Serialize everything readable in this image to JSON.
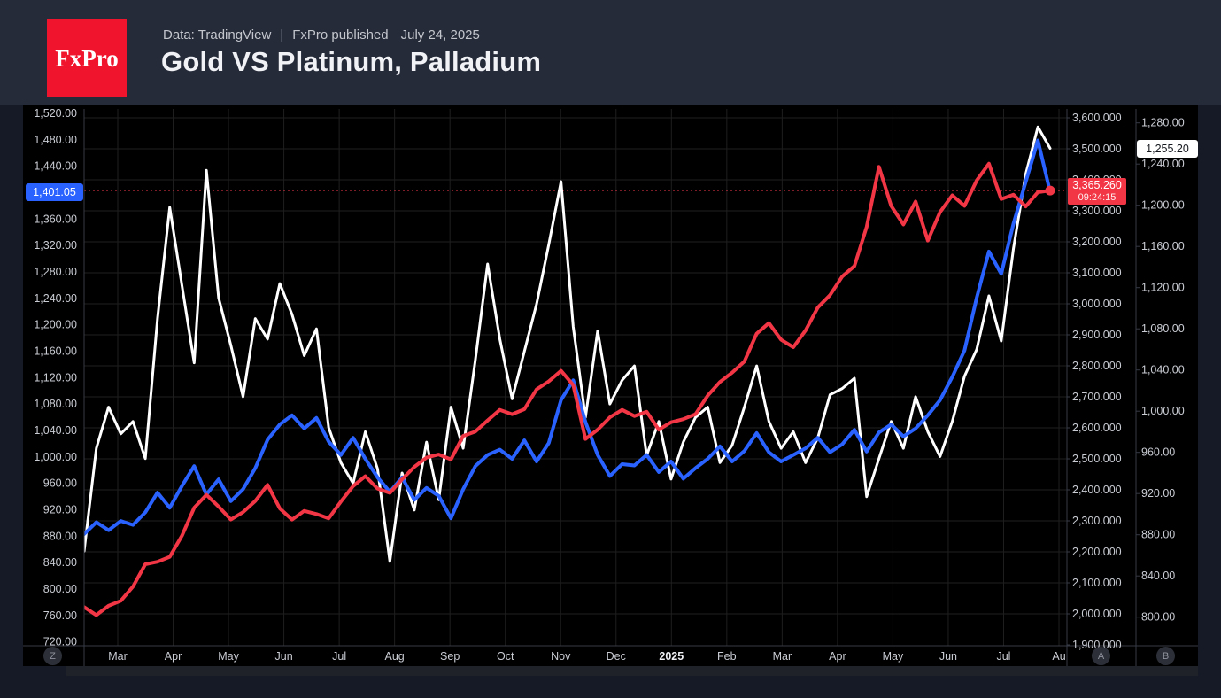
{
  "header": {
    "logo_text": "FxPro",
    "data_source": "Data: TradingView",
    "separator": "|",
    "published": "FxPro published",
    "publish_date": "July 24, 2025",
    "title": "Gold VS Platinum, Palladium"
  },
  "badges": {
    "platinum_last": "1,401.05",
    "palladium_last": "1,255.20",
    "gold_last": "3,365.260",
    "gold_time": "09:24:15"
  },
  "buttons": {
    "zoom_reset": "Z",
    "axis_a": "A",
    "axis_b": "B"
  },
  "colors": {
    "gold_line": "#f23645",
    "platinum_line": "#2962ff",
    "palladium_line": "#ffffff",
    "background": "#000000",
    "header_bg": "#262b39",
    "axis_text": "#c9ccd3",
    "logo_red": "#f0142d"
  },
  "chart_data": {
    "type": "line",
    "title": "Gold VS Platinum, Palladium",
    "sampling": "weekly, Feb 2024 - Jul 24 2025",
    "grid": true,
    "legend": "none",
    "x_axis": {
      "labels": [
        "Mar",
        "Apr",
        "May",
        "Jun",
        "Jul",
        "Aug",
        "Sep",
        "Oct",
        "Nov",
        "Dec",
        "2025",
        "Feb",
        "Mar",
        "Apr",
        "May",
        "Jun",
        "Jul",
        "Au"
      ],
      "bold_label": "2025"
    },
    "axes": {
      "left": {
        "instrument": "Platinum",
        "min": 720,
        "max": 1520,
        "step": 40,
        "decimals": 2,
        "hidden_tick": 1400
      },
      "right_inner": {
        "instrument": "Gold",
        "min": 1900,
        "max": 3600,
        "step": 100,
        "decimals": 3
      },
      "right_outer": {
        "instrument": "Palladium",
        "min": 800,
        "max": 1280,
        "step": 40,
        "decimals": 2
      }
    },
    "series": [
      {
        "name": "Palladium",
        "color": "#ffffff",
        "axis": "right_outer",
        "last_value": 1255.2,
        "values": [
          864,
          964,
          1004,
          978,
          990,
          954,
          1090,
          1198,
          1122,
          1047,
          1234,
          1110,
          1064,
          1014,
          1090,
          1070,
          1124,
          1094,
          1054,
          1080,
          984,
          950,
          930,
          980,
          944,
          854,
          940,
          904,
          970,
          914,
          1004,
          964,
          1050,
          1143,
          1070,
          1012,
          1058,
          1104,
          1162,
          1223,
          1082,
          994,
          1078,
          1007,
          1030,
          1044,
          957,
          990,
          934,
          970,
          994,
          1004,
          950,
          967,
          1004,
          1044,
          990,
          964,
          980,
          950,
          974,
          1016,
          1022,
          1032,
          917,
          954,
          990,
          964,
          1014,
          980,
          956,
          990,
          1034,
          1060,
          1112,
          1068,
          1158,
          1230,
          1276,
          1255.2
        ]
      },
      {
        "name": "Platinum",
        "color": "#2962ff",
        "axis": "left",
        "last_value": 1401.05,
        "values": [
          883,
          901,
          889,
          903,
          897,
          916,
          946,
          923,
          956,
          986,
          943,
          966,
          933,
          951,
          983,
          1026,
          1049,
          1063,
          1043,
          1059,
          1023,
          1003,
          1029,
          997,
          969,
          947,
          969,
          935,
          953,
          941,
          907,
          951,
          986,
          1003,
          1011,
          997,
          1025,
          993,
          1021,
          1086,
          1116,
          1053,
          1003,
          971,
          989,
          987,
          1003,
          977,
          993,
          967,
          983,
          997,
          1016,
          993,
          1009,
          1036,
          1007,
          993,
          1003,
          1013,
          1029,
          1007,
          1019,
          1041,
          1008,
          1037,
          1049,
          1031,
          1043,
          1063,
          1086,
          1121,
          1161,
          1241,
          1311,
          1277,
          1353,
          1416,
          1479,
          1401.05
        ]
      },
      {
        "name": "Gold",
        "color": "#f23645",
        "axis": "right_inner",
        "last_value": 3365.26,
        "last_time": "09:24:15",
        "values": [
          2022,
          1996,
          2026,
          2042,
          2088,
          2160,
          2168,
          2184,
          2252,
          2342,
          2384,
          2346,
          2304,
          2328,
          2364,
          2416,
          2340,
          2304,
          2332,
          2322,
          2308,
          2362,
          2412,
          2444,
          2404,
          2390,
          2434,
          2474,
          2504,
          2514,
          2498,
          2574,
          2588,
          2624,
          2658,
          2644,
          2660,
          2724,
          2750,
          2784,
          2738,
          2564,
          2594,
          2634,
          2658,
          2638,
          2652,
          2594,
          2618,
          2628,
          2644,
          2704,
          2748,
          2778,
          2814,
          2904,
          2938,
          2884,
          2860,
          2914,
          2988,
          3028,
          3088,
          3122,
          3248,
          3442,
          3316,
          3256,
          3330,
          3204,
          3296,
          3350,
          3316,
          3398,
          3452,
          3338,
          3352,
          3314,
          3360,
          3365.26
        ]
      }
    ]
  }
}
